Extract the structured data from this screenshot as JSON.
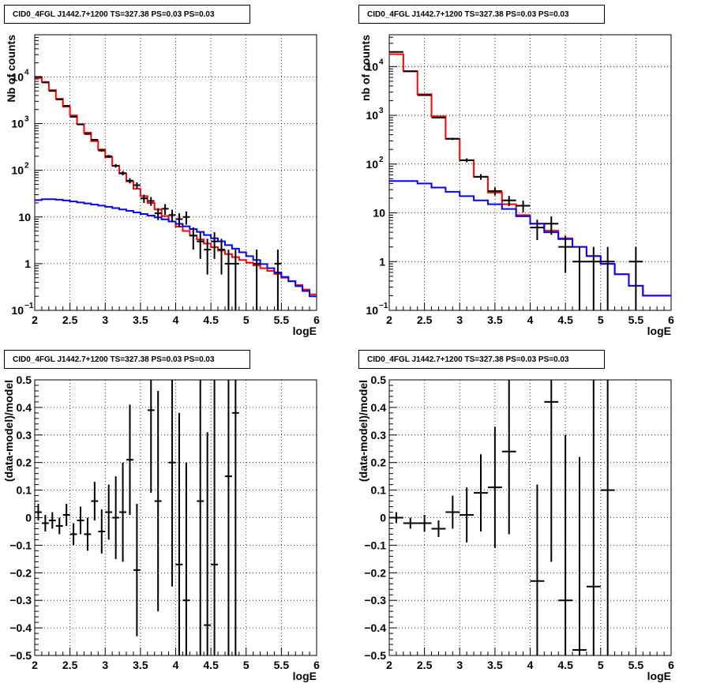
{
  "chart_data": [
    {
      "id": "p0",
      "type": "line",
      "title": "CID0_4FGL J1442.7+1200 TS=327.38 PS=0.03 PS=0.03",
      "xlabel": "logE",
      "ylabel": "Nb of counts",
      "xlim": [
        2,
        6
      ],
      "ylim": [
        0.1,
        80000
      ],
      "yscale": "log",
      "grid": true,
      "colors": {
        "total_model": "#ff0000",
        "background_model": "#0000ff",
        "data": "#000000"
      },
      "x_ticks": [
        "2",
        "2.5",
        "3",
        "3.5",
        "4",
        "4.5",
        "5",
        "5.5",
        "6"
      ],
      "y_ticks": [
        {
          "v": 0.1,
          "label": "10",
          "sup": "−1"
        },
        {
          "v": 1,
          "label": "1",
          "sup": ""
        },
        {
          "v": 10,
          "label": "10",
          "sup": ""
        },
        {
          "v": 100,
          "label": "10",
          "sup": "2"
        },
        {
          "v": 1000,
          "label": "10",
          "sup": "3"
        },
        {
          "v": 10000,
          "label": "10",
          "sup": "4"
        }
      ],
      "series": [
        {
          "role": "total_model",
          "edges": [
            2,
            6
          ],
          "values": [
            9500,
            7800,
            5200,
            3400,
            2300,
            1500,
            970,
            640,
            420,
            280,
            190,
            125,
            85,
            58,
            40,
            28,
            20,
            14.5,
            10.5,
            8.0,
            6.2,
            5.0,
            4.0,
            3.3,
            2.7,
            2.25,
            1.9,
            1.6,
            1.38,
            1.2,
            1.05,
            0.92,
            0.8,
            0.7,
            0.6,
            0.5,
            0.42,
            0.35,
            0.28,
            0.22
          ]
        },
        {
          "role": "background_model",
          "edges": [
            2,
            6
          ],
          "values": [
            23,
            24,
            24,
            23.5,
            22.5,
            21.5,
            20.5,
            19.5,
            18.5,
            17.5,
            16.5,
            15.5,
            14.5,
            13.5,
            12.5,
            11.6,
            10.7,
            9.8,
            8.9,
            8.0,
            7.1,
            6.3,
            5.5,
            4.8,
            4.1,
            3.5,
            3.0,
            2.5,
            2.1,
            1.75,
            1.45,
            1.2,
            0.98,
            0.8,
            0.65,
            0.52,
            0.42,
            0.33,
            0.26,
            0.2
          ]
        },
        {
          "role": "data",
          "type": "errorbar",
          "x_halfwidth": 0.05,
          "points": [
            {
              "x": 2.05,
              "y": 10000
            },
            {
              "x": 2.15,
              "y": 7600
            },
            {
              "x": 2.25,
              "y": 5000
            },
            {
              "x": 2.35,
              "y": 3300
            },
            {
              "x": 2.45,
              "y": 2400
            },
            {
              "x": 2.55,
              "y": 1400
            },
            {
              "x": 2.65,
              "y": 960
            },
            {
              "x": 2.75,
              "y": 600
            },
            {
              "x": 2.85,
              "y": 450
            },
            {
              "x": 2.95,
              "y": 265
            },
            {
              "x": 3.05,
              "y": 200
            },
            {
              "x": 3.15,
              "y": 125
            },
            {
              "x": 3.25,
              "y": 87
            },
            {
              "x": 3.35,
              "y": 60
            },
            {
              "x": 3.45,
              "y": 48
            },
            {
              "x": 3.55,
              "y": 25
            },
            {
              "x": 3.65,
              "y": 22
            },
            {
              "x": 3.75,
              "y": 12
            },
            {
              "x": 3.85,
              "y": 15
            },
            {
              "x": 3.95,
              "y": 11
            },
            {
              "x": 4.05,
              "y": 9
            },
            {
              "x": 4.15,
              "y": 10
            },
            {
              "x": 4.25,
              "y": 4
            },
            {
              "x": 4.35,
              "y": 3
            },
            {
              "x": 4.45,
              "y": 2
            },
            {
              "x": 4.55,
              "y": 3
            },
            {
              "x": 4.65,
              "y": 2
            },
            {
              "x": 4.75,
              "y": 1
            },
            {
              "x": 4.85,
              "y": 1
            },
            {
              "x": 5.15,
              "y": 1
            },
            {
              "x": 5.45,
              "y": 1
            }
          ]
        }
      ]
    },
    {
      "id": "p1",
      "type": "line",
      "title": "CID0_4FGL J1442.7+1200 TS=327.38 PS=0.03 PS=0.03",
      "xlabel": "logE",
      "ylabel": "nb of counts",
      "xlim": [
        2,
        6
      ],
      "ylim": [
        0.1,
        45000
      ],
      "yscale": "log",
      "grid": true,
      "colors": {
        "total_model": "#ff0000",
        "background_model": "#0000ff",
        "data": "#000000"
      },
      "x_ticks": [
        "2",
        "2.5",
        "3",
        "3.5",
        "4",
        "4.5",
        "5",
        "5.5",
        "6"
      ],
      "y_ticks": [
        {
          "v": 0.1,
          "label": "10",
          "sup": "−1"
        },
        {
          "v": 1,
          "label": "1",
          "sup": ""
        },
        {
          "v": 10,
          "label": "10",
          "sup": ""
        },
        {
          "v": 100,
          "label": "10",
          "sup": "2"
        },
        {
          "v": 1000,
          "label": "10",
          "sup": "3"
        },
        {
          "v": 10000,
          "label": "10",
          "sup": "4"
        }
      ],
      "series": [
        {
          "role": "total_model",
          "edges": [
            2,
            6
          ],
          "values": [
            18000,
            8000,
            2700,
            950,
            330,
            120,
            55,
            26,
            15,
            9,
            6,
            4.3,
            3.0,
            2.0,
            1.3,
            0.9,
            0.55,
            0.32,
            0.2,
            0.2
          ]
        },
        {
          "role": "background_model",
          "edges": [
            2,
            6
          ],
          "values": [
            45,
            45,
            40,
            33,
            27,
            22,
            18,
            15,
            12,
            8.5,
            6,
            4,
            2.9,
            2,
            1.3,
            0.9,
            0.55,
            0.32,
            0.2,
            0.2
          ]
        },
        {
          "role": "data",
          "type": "errorbar",
          "x_halfwidth": 0.1,
          "points": [
            {
              "x": 2.1,
              "y": 20000
            },
            {
              "x": 2.3,
              "y": 8000
            },
            {
              "x": 2.5,
              "y": 2600
            },
            {
              "x": 2.7,
              "y": 900
            },
            {
              "x": 2.9,
              "y": 330
            },
            {
              "x": 3.1,
              "y": 120
            },
            {
              "x": 3.3,
              "y": 55
            },
            {
              "x": 3.5,
              "y": 28
            },
            {
              "x": 3.7,
              "y": 18
            },
            {
              "x": 3.9,
              "y": 14
            },
            {
              "x": 4.1,
              "y": 5
            },
            {
              "x": 4.3,
              "y": 6
            },
            {
              "x": 4.5,
              "y": 2
            },
            {
              "x": 4.7,
              "y": 1
            },
            {
              "x": 4.9,
              "y": 1
            },
            {
              "x": 5.1,
              "y": 1
            },
            {
              "x": 5.5,
              "y": 1
            }
          ]
        }
      ]
    },
    {
      "id": "p2",
      "type": "scatter",
      "title": "CID0_4FGL J1442.7+1200 TS=327.38 PS=0.03 PS=0.03",
      "xlabel": "logE",
      "ylabel": "(data-model)/model",
      "xlim": [
        2,
        6
      ],
      "ylim": [
        -0.5,
        0.5
      ],
      "grid": true,
      "x_ticks": [
        "2",
        "2.5",
        "3",
        "3.5",
        "4",
        "4.5",
        "5",
        "5.5",
        "6"
      ],
      "y_ticks": [
        "−0.5",
        "−0.4",
        "−0.3",
        "−0.2",
        "−0.1",
        "0",
        "0.1",
        "0.2",
        "0.3",
        "0.4",
        "0.5"
      ],
      "series": [
        {
          "role": "data",
          "type": "errorbar",
          "x_halfwidth": 0.05,
          "points": [
            {
              "x": 2.05,
              "y": 0.02,
              "err": 0.03
            },
            {
              "x": 2.15,
              "y": -0.02,
              "err": 0.03
            },
            {
              "x": 2.25,
              "y": -0.01,
              "err": 0.03
            },
            {
              "x": 2.35,
              "y": -0.03,
              "err": 0.03
            },
            {
              "x": 2.45,
              "y": 0.01,
              "err": 0.04
            },
            {
              "x": 2.55,
              "y": -0.06,
              "err": 0.04
            },
            {
              "x": 2.65,
              "y": -0.01,
              "err": 0.05
            },
            {
              "x": 2.75,
              "y": -0.06,
              "err": 0.06
            },
            {
              "x": 2.85,
              "y": 0.06,
              "err": 0.07
            },
            {
              "x": 2.95,
              "y": -0.05,
              "err": 0.08
            },
            {
              "x": 3.05,
              "y": 0.02,
              "err": 0.1
            },
            {
              "x": 3.15,
              "y": 0.0,
              "err": 0.15
            },
            {
              "x": 3.25,
              "y": 0.02,
              "err": 0.18
            },
            {
              "x": 3.35,
              "y": 0.21,
              "err": 0.2
            },
            {
              "x": 3.45,
              "y": -0.19,
              "err": 0.24
            },
            {
              "x": 3.65,
              "y": 0.39,
              "err": 0.3
            },
            {
              "x": 3.75,
              "y": 0.06,
              "err": 0.4
            },
            {
              "x": 3.95,
              "y": 0.2,
              "err": 0.45
            },
            {
              "x": 4.05,
              "y": -0.17,
              "err": 0.55
            },
            {
              "x": 4.15,
              "y": -0.3,
              "err": 0.5
            },
            {
              "x": 4.35,
              "y": 0.06,
              "err": 0.7
            },
            {
              "x": 4.45,
              "y": -0.39,
              "err": 0.7
            },
            {
              "x": 4.55,
              "y": -0.17,
              "err": 1.0
            },
            {
              "x": 4.75,
              "y": 0.15,
              "err": 1.0
            },
            {
              "x": 4.85,
              "y": 0.38,
              "err": 1.0
            }
          ]
        }
      ]
    },
    {
      "id": "p3",
      "type": "scatter",
      "title": "CID0_4FGL J1442.7+1200 TS=327.38 PS=0.03 PS=0.03",
      "xlabel": "logE",
      "ylabel": "(data-model)/model",
      "xlim": [
        2,
        6
      ],
      "ylim": [
        -0.5,
        0.5
      ],
      "grid": true,
      "x_ticks": [
        "2",
        "2.5",
        "3",
        "3.5",
        "4",
        "4.5",
        "5",
        "5.5",
        "6"
      ],
      "y_ticks": [
        "−0.5",
        "−0.4",
        "−0.3",
        "−0.2",
        "−0.1",
        "0",
        "0.1",
        "0.2",
        "0.3",
        "0.4",
        "0.5"
      ],
      "series": [
        {
          "role": "data",
          "type": "errorbar",
          "x_halfwidth": 0.1,
          "points": [
            {
              "x": 2.1,
              "y": 0.0,
              "err": 0.02
            },
            {
              "x": 2.3,
              "y": -0.02,
              "err": 0.02
            },
            {
              "x": 2.5,
              "y": -0.02,
              "err": 0.03
            },
            {
              "x": 2.7,
              "y": -0.04,
              "err": 0.03
            },
            {
              "x": 2.9,
              "y": 0.02,
              "err": 0.06
            },
            {
              "x": 3.1,
              "y": 0.01,
              "err": 0.1
            },
            {
              "x": 3.3,
              "y": 0.09,
              "err": 0.14
            },
            {
              "x": 3.5,
              "y": 0.11,
              "err": 0.22
            },
            {
              "x": 3.7,
              "y": 0.24,
              "err": 0.3
            },
            {
              "x": 4.1,
              "y": -0.23,
              "err": 0.35
            },
            {
              "x": 4.3,
              "y": 0.42,
              "err": 0.58
            },
            {
              "x": 4.5,
              "y": -0.3,
              "err": 0.6
            },
            {
              "x": 4.7,
              "y": -0.48,
              "err": 0.7
            },
            {
              "x": 4.9,
              "y": -0.25,
              "err": 1.0
            },
            {
              "x": 5.1,
              "y": 0.1,
              "err": 1.0
            }
          ]
        }
      ]
    }
  ]
}
